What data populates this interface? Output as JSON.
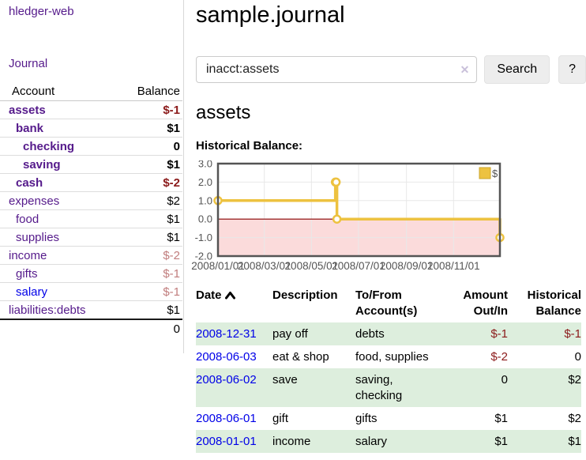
{
  "app": {
    "title": "hledger-web"
  },
  "sidebar": {
    "journal_link": "Journal",
    "accounts_table": {
      "col_account": "Account",
      "col_balance": "Balance",
      "rows": [
        {
          "name": "assets",
          "indent": 0,
          "bold": true,
          "neg": "strong",
          "balance": "$-1"
        },
        {
          "name": "bank",
          "indent": 1,
          "bold": true,
          "neg": null,
          "balance": "$1"
        },
        {
          "name": "checking",
          "indent": 2,
          "bold": true,
          "neg": null,
          "balance": "0"
        },
        {
          "name": "saving",
          "indent": 2,
          "bold": true,
          "neg": null,
          "balance": "$1"
        },
        {
          "name": "cash",
          "indent": 1,
          "bold": true,
          "neg": "strong",
          "balance": "$-2"
        },
        {
          "name": "expenses",
          "indent": 0,
          "bold": false,
          "neg": null,
          "balance": "$2"
        },
        {
          "name": "food",
          "indent": 1,
          "bold": false,
          "neg": null,
          "balance": "$1"
        },
        {
          "name": "supplies",
          "indent": 1,
          "bold": false,
          "neg": null,
          "balance": "$1"
        },
        {
          "name": "income",
          "indent": 0,
          "bold": false,
          "neg": "muted",
          "balance": "$-2"
        },
        {
          "name": "gifts",
          "indent": 1,
          "bold": false,
          "neg": "muted",
          "balance": "$-1"
        },
        {
          "name": "salary",
          "indent": 1,
          "bold": false,
          "neg": "muted",
          "balance": "$-1",
          "link": "blue"
        },
        {
          "name": "liabilities:debts",
          "indent": 0,
          "bold": false,
          "neg": null,
          "balance": "$1"
        }
      ],
      "total": "0"
    }
  },
  "main": {
    "title": "sample.journal",
    "search": {
      "value": "inacct:assets",
      "clear_glyph": "✕",
      "button_label": "Search",
      "help_label": "?"
    },
    "account_heading": "assets",
    "chart_label": "Historical Balance:",
    "transactions": {
      "headers": [
        {
          "l1": "Date",
          "l2": ""
        },
        {
          "l1": "Description",
          "l2": ""
        },
        {
          "l1": "To/From",
          "l2": "Account(s)"
        },
        {
          "l1": "Amount",
          "l2": "Out/In"
        },
        {
          "l1": "Historical",
          "l2": "Balance"
        }
      ],
      "rows": [
        {
          "date": "2008-12-31",
          "description": "pay off",
          "accounts": "debts",
          "amount": "$-1",
          "amount_neg": true,
          "balance": "$-1",
          "balance_neg": true
        },
        {
          "date": "2008-06-03",
          "description": "eat & shop",
          "accounts": "food, supplies",
          "amount": "$-2",
          "amount_neg": true,
          "balance": "0",
          "balance_neg": false
        },
        {
          "date": "2008-06-02",
          "description": "save",
          "accounts": "saving, checking",
          "amount": "0",
          "amount_neg": false,
          "balance": "$2",
          "balance_neg": false
        },
        {
          "date": "2008-06-01",
          "description": "gift",
          "accounts": "gifts",
          "amount": "$1",
          "amount_neg": false,
          "balance": "$2",
          "balance_neg": false
        },
        {
          "date": "2008-01-01",
          "description": "income",
          "accounts": "salary",
          "amount": "$1",
          "amount_neg": false,
          "balance": "$1",
          "balance_neg": false
        }
      ]
    }
  },
  "chart_data": {
    "type": "line",
    "title": "Historical Balance:",
    "steps": true,
    "x_range": [
      "2008-01-01",
      "2008-12-31"
    ],
    "ylim": [
      -2,
      3
    ],
    "y_ticks": [
      3.0,
      2.0,
      1.0,
      0.0,
      -1.0,
      -2.0
    ],
    "x_ticks": [
      "2008/01/01",
      "2008/03/01",
      "2008/05/01",
      "2008/07/01",
      "2008/09/01",
      "2008/11/01"
    ],
    "series": [
      {
        "name": "$",
        "color": "#EDC240",
        "points": [
          [
            "2008-01-01",
            1
          ],
          [
            "2008-06-01",
            2
          ],
          [
            "2008-06-02",
            2
          ],
          [
            "2008-06-03",
            0
          ],
          [
            "2008-12-31",
            -1
          ]
        ]
      }
    ],
    "grid": true,
    "legend_position": "top-right",
    "negative_fill": "#FBDBDB",
    "zero_line_color": "#8B0000"
  },
  "colors": {
    "link_purple": "#551A8B",
    "link_blue": "#0000E8",
    "negative_strong": "#8B1A1A",
    "negative_muted": "#C17D7D",
    "row_stripe_green": "#DDEEDD",
    "series_gold": "#EDC240",
    "negative_region_pink": "#FBDBDB",
    "zero_line_red": "#8B0000",
    "chart_border_gray": "#545454",
    "grid_line": "#E8E8E8",
    "axis_text": "#545454"
  }
}
